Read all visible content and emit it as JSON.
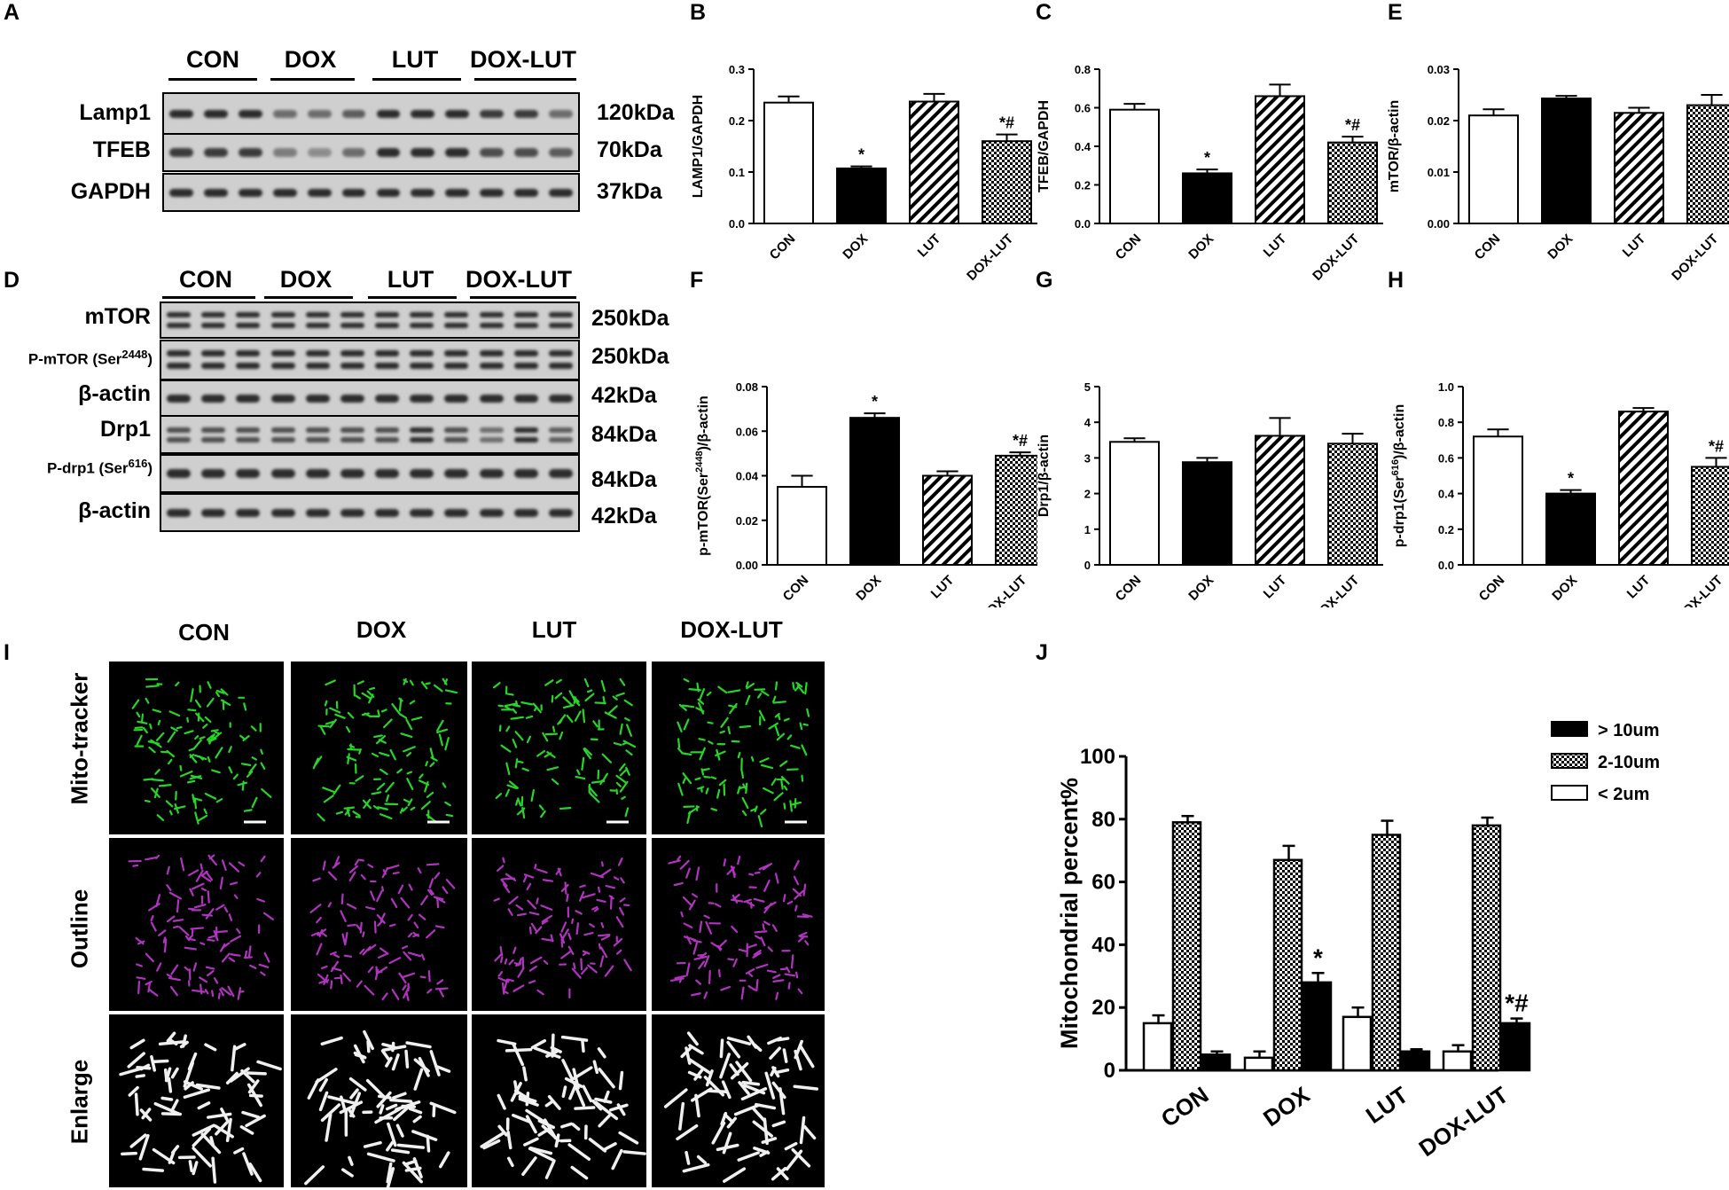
{
  "panel_letters": {
    "A": "A",
    "B": "B",
    "C": "C",
    "D": "D",
    "E": "E",
    "F": "F",
    "G": "G",
    "H": "H",
    "I": "I",
    "J": "J"
  },
  "groups": [
    "CON",
    "DOX",
    "LUT",
    "DOX-LUT"
  ],
  "blot_a": {
    "rows": [
      {
        "label": "Lamp1",
        "kda": "120kDa"
      },
      {
        "label": "TFEB",
        "kda": "70kDa"
      },
      {
        "label": "GAPDH",
        "kda": "37kDa"
      }
    ]
  },
  "blot_d": {
    "rows": [
      {
        "label": "mTOR",
        "kda": "250kDa"
      },
      {
        "label": "P-mTOR (Ser",
        "sup": "2448",
        "label_end": ")",
        "kda": "250kDa"
      },
      {
        "label": "β-actin",
        "kda": "42kDa"
      },
      {
        "label": "Drp1",
        "kda": "84kDa"
      },
      {
        "label": "P-drp1 (Ser",
        "sup": "616",
        "label_end": ")",
        "kda": "84kDa"
      },
      {
        "label": "β-actin",
        "kda": "42kDa"
      }
    ]
  },
  "micro": {
    "col_labels": [
      "CON",
      "DOX",
      "LUT",
      "DOX-LUT"
    ],
    "row_labels": [
      "Mito-tracker",
      "Outline",
      "Enlarge"
    ]
  },
  "chart_data": [
    {
      "panel": "B",
      "type": "bar",
      "categories": [
        "CON",
        "DOX",
        "LUT",
        "DOX-LUT"
      ],
      "values": [
        0.235,
        0.107,
        0.237,
        0.16
      ],
      "errors": [
        0.012,
        0.004,
        0.015,
        0.013
      ],
      "annotations": [
        "",
        "*",
        "",
        "*#"
      ],
      "ylabel": "LAMP1/GAPDH",
      "ylim": [
        0,
        0.3
      ],
      "yticks": [
        "0.0",
        "0.1",
        "0.2",
        "0.3"
      ],
      "patterns": [
        "white",
        "black",
        "hatch",
        "check"
      ]
    },
    {
      "panel": "C",
      "type": "bar",
      "categories": [
        "CON",
        "DOX",
        "LUT",
        "DOX-LUT"
      ],
      "values": [
        0.59,
        0.26,
        0.66,
        0.42
      ],
      "errors": [
        0.03,
        0.02,
        0.06,
        0.03
      ],
      "annotations": [
        "",
        "*",
        "",
        "*#"
      ],
      "ylabel": "TFEB/GAPDH",
      "ylim": [
        0,
        0.8
      ],
      "yticks": [
        "0.0",
        "0.2",
        "0.4",
        "0.6",
        "0.8"
      ],
      "patterns": [
        "white",
        "black",
        "hatch",
        "check"
      ]
    },
    {
      "panel": "E",
      "type": "bar",
      "categories": [
        "CON",
        "DOX",
        "LUT",
        "DOX-LUT"
      ],
      "values": [
        0.021,
        0.0243,
        0.0215,
        0.023
      ],
      "errors": [
        0.0012,
        0.0005,
        0.001,
        0.002
      ],
      "annotations": [
        "",
        "",
        "",
        ""
      ],
      "ylabel": "mTOR/β-actin",
      "ylim": [
        0,
        0.03
      ],
      "yticks": [
        "0.00",
        "0.01",
        "0.02",
        "0.03"
      ],
      "patterns": [
        "white",
        "black",
        "hatch",
        "check"
      ]
    },
    {
      "panel": "F",
      "type": "bar",
      "categories": [
        "CON",
        "DOX",
        "LUT",
        "DOX-LUT"
      ],
      "values": [
        0.035,
        0.066,
        0.04,
        0.049
      ],
      "errors": [
        0.005,
        0.002,
        0.002,
        0.0015
      ],
      "annotations": [
        "",
        "*",
        "",
        "*#"
      ],
      "ylabel": "p-mTOR(Ser2448)/β-actin",
      "ylim": [
        0,
        0.08
      ],
      "yticks": [
        "0.00",
        "0.02",
        "0.04",
        "0.06",
        "0.08"
      ],
      "patterns": [
        "white",
        "black",
        "hatch",
        "check"
      ]
    },
    {
      "panel": "G",
      "type": "bar",
      "categories": [
        "CON",
        "DOX",
        "LUT",
        "DOX-LUT"
      ],
      "values": [
        3.45,
        2.88,
        3.62,
        3.4
      ],
      "errors": [
        0.1,
        0.12,
        0.5,
        0.28
      ],
      "annotations": [
        "",
        "",
        "",
        ""
      ],
      "ylabel": "Drp1/β-actin",
      "ylim": [
        0,
        5
      ],
      "yticks": [
        "0",
        "1",
        "2",
        "3",
        "4",
        "5"
      ],
      "patterns": [
        "white",
        "black",
        "hatch",
        "check"
      ]
    },
    {
      "panel": "H",
      "type": "bar",
      "categories": [
        "CON",
        "DOX",
        "LUT",
        "DOX-LUT"
      ],
      "values": [
        0.72,
        0.4,
        0.86,
        0.55
      ],
      "errors": [
        0.04,
        0.02,
        0.02,
        0.05
      ],
      "annotations": [
        "",
        "*",
        "",
        "*#"
      ],
      "ylabel": "p-drp1(Ser616)/β-actin",
      "ylim": [
        0,
        1.0
      ],
      "yticks": [
        "0.0",
        "0.2",
        "0.4",
        "0.6",
        "0.8",
        "1.0"
      ],
      "patterns": [
        "white",
        "black",
        "hatch",
        "check"
      ]
    },
    {
      "panel": "J",
      "type": "bar",
      "categories": [
        "CON",
        "DOX",
        "LUT",
        "DOX-LUT"
      ],
      "series": [
        {
          "name": "< 2um",
          "values": [
            15,
            4,
            17,
            6
          ],
          "errors": [
            2.5,
            2,
            3,
            2
          ],
          "pattern": "white"
        },
        {
          "name": "2-10um",
          "values": [
            79,
            67,
            75,
            78
          ],
          "errors": [
            2,
            4.5,
            4.5,
            2.5
          ],
          "pattern": "check"
        },
        {
          "name": "> 10um",
          "values": [
            5,
            28,
            6,
            15
          ],
          "errors": [
            1,
            3,
            0.7,
            1.5
          ],
          "pattern": "black"
        }
      ],
      "annotations": [
        "",
        "*",
        "",
        "*#"
      ],
      "ylabel": "Mitochondrial percent%",
      "ylim": [
        0,
        100
      ],
      "yticks": [
        "0",
        "20",
        "40",
        "60",
        "80",
        "100"
      ],
      "legend": [
        "> 10um",
        "2-10um",
        "< 2um"
      ],
      "legend_position": "top-right"
    }
  ]
}
